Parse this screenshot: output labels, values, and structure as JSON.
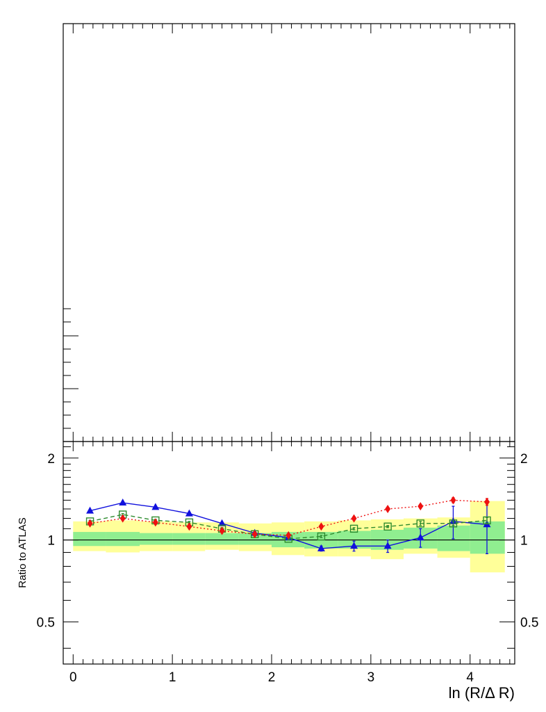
{
  "chart_data": [
    {
      "panel": "upper",
      "type": "line",
      "xlim": [
        -0.1,
        4.45
      ],
      "series": [],
      "note": ""
    },
    {
      "panel": "ratio",
      "type": "line",
      "xlabel": "ln (R/Δ R)",
      "ylabel": "Ratio to ATLAS",
      "xlim": [
        -0.1,
        4.45
      ],
      "ylim": [
        0.35,
        2.3
      ],
      "y_scale": "log",
      "xticks": [
        "0",
        "1",
        "2",
        "3",
        "4"
      ],
      "yticks": [
        "0.5",
        "1",
        "2"
      ],
      "reference_line": 1.0,
      "bins": [
        [
          0.0,
          0.33
        ],
        [
          0.33,
          0.67
        ],
        [
          0.67,
          1.0
        ],
        [
          1.0,
          1.33
        ],
        [
          1.33,
          1.67
        ],
        [
          1.67,
          2.0
        ],
        [
          2.0,
          2.33
        ],
        [
          2.33,
          2.67
        ],
        [
          2.67,
          3.0
        ],
        [
          3.0,
          3.33
        ],
        [
          3.33,
          3.67
        ],
        [
          3.67,
          4.0
        ],
        [
          4.0,
          4.35
        ]
      ],
      "band_total": [
        [
          0.91,
          1.17
        ],
        [
          0.9,
          1.18
        ],
        [
          0.91,
          1.17
        ],
        [
          0.91,
          1.16
        ],
        [
          0.92,
          1.16
        ],
        [
          0.91,
          1.15
        ],
        [
          0.88,
          1.16
        ],
        [
          0.87,
          1.17
        ],
        [
          0.87,
          1.18
        ],
        [
          0.85,
          1.19
        ],
        [
          0.89,
          1.2
        ],
        [
          0.86,
          1.21
        ],
        [
          0.76,
          1.39
        ]
      ],
      "band_stat": [
        [
          0.95,
          1.07
        ],
        [
          0.95,
          1.07
        ],
        [
          0.96,
          1.06
        ],
        [
          0.96,
          1.06
        ],
        [
          0.96,
          1.06
        ],
        [
          0.96,
          1.06
        ],
        [
          0.94,
          1.07
        ],
        [
          0.93,
          1.07
        ],
        [
          0.93,
          1.08
        ],
        [
          0.92,
          1.09
        ],
        [
          0.93,
          1.11
        ],
        [
          0.91,
          1.13
        ],
        [
          0.89,
          1.17
        ]
      ],
      "series": [
        {
          "marker": "triangle",
          "color": "#1010dd",
          "line_style": "solid",
          "x": [
            0.17,
            0.5,
            0.83,
            1.17,
            1.5,
            1.83,
            2.17,
            2.5,
            2.83,
            3.17,
            3.5,
            3.83,
            4.17
          ],
          "y": [
            1.28,
            1.37,
            1.32,
            1.25,
            1.15,
            1.06,
            1.02,
            0.93,
            0.95,
            0.95,
            1.02,
            1.17,
            1.14
          ],
          "err": [
            0.01,
            0.01,
            0.01,
            0.01,
            0.01,
            0.01,
            0.02,
            0.02,
            0.04,
            0.05,
            0.08,
            0.16,
            0.25
          ]
        },
        {
          "marker": "open-square",
          "color": "#2e8b2e",
          "line_style": "dashed",
          "x": [
            0.17,
            0.5,
            0.83,
            1.17,
            1.5,
            1.83,
            2.17,
            2.5,
            2.83,
            3.17,
            3.5,
            3.83,
            4.17
          ],
          "y": [
            1.17,
            1.24,
            1.18,
            1.16,
            1.1,
            1.05,
            1.01,
            1.03,
            1.1,
            1.12,
            1.15,
            1.15,
            1.18
          ],
          "err": [
            0.01,
            0.01,
            0.01,
            0.01,
            0.01,
            0.01,
            0.01,
            0.01,
            0.01,
            0.01,
            0.02,
            0.02,
            0.03
          ]
        },
        {
          "marker": "diamond",
          "color": "#ee1111",
          "line_style": "dotted",
          "x": [
            0.17,
            0.5,
            0.83,
            1.17,
            1.5,
            1.83,
            2.17,
            2.5,
            2.83,
            3.17,
            3.5,
            3.83,
            4.17
          ],
          "y": [
            1.15,
            1.2,
            1.16,
            1.12,
            1.08,
            1.05,
            1.04,
            1.12,
            1.2,
            1.3,
            1.33,
            1.4,
            1.38
          ],
          "err": [
            0.01,
            0.01,
            0.01,
            0.01,
            0.01,
            0.01,
            0.01,
            0.01,
            0.01,
            0.01,
            0.02,
            0.03,
            0.04
          ]
        }
      ]
    }
  ],
  "colors": {
    "band_total": "#ffff99",
    "band_stat": "#90ee90",
    "frame": "#000000"
  }
}
